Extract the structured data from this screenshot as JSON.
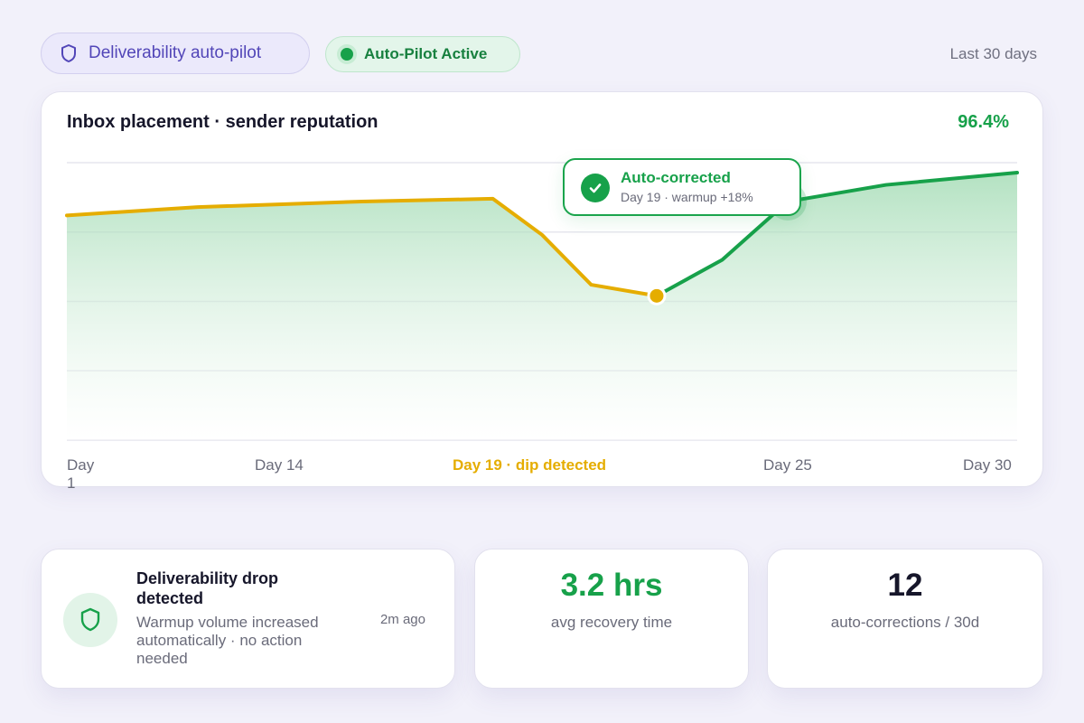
{
  "header": {
    "product_label": "Deliverability auto-pilot",
    "status_label": "Auto-Pilot Active",
    "range_label": "Last 30 days"
  },
  "chart": {
    "title": "Inbox placement · sender reputation",
    "current_value": "96.4%",
    "callout": {
      "title": "Auto-corrected",
      "subtitle": "Day 19 · warmup +18%"
    },
    "x_ticks": {
      "day1": "Day\n1",
      "day14": "Day 14",
      "dip": "Day 19 · dip detected",
      "day25": "Day 25",
      "day30": "Day 30"
    }
  },
  "chart_data": {
    "type": "line",
    "title": "Inbox placement · sender reputation",
    "ylim": [
      0,
      100
    ],
    "grid": true,
    "series": [
      {
        "name": "",
        "x": [
          1,
          5,
          10,
          14,
          15.5,
          17,
          19
        ],
        "y": [
          81,
          84,
          86,
          87,
          74,
          56,
          52
        ],
        "color": "#e5ad00"
      },
      {
        "name": "",
        "x": [
          19,
          21,
          23,
          26,
          30
        ],
        "y": [
          52,
          65,
          86,
          92,
          96.4
        ],
        "color": "#17a14a"
      }
    ],
    "markers": [
      {
        "label": "dip",
        "x": 19,
        "y": 52,
        "color": "#e5ad00"
      },
      {
        "label": "auto-corrected",
        "x": 23,
        "y": 86,
        "color": "#17a14a"
      }
    ]
  },
  "alert": {
    "title": "Deliverability drop detected",
    "body": "Warmup volume increased automatically · no action needed",
    "time": "2m ago"
  },
  "stats": [
    {
      "value": "3.2 hrs",
      "label": "avg recovery time"
    },
    {
      "value": "12",
      "label": "auto-corrections / 30d"
    }
  ],
  "colors": {
    "accent_green": "#17a14a",
    "warning_yellow": "#e5ad00",
    "brand_purple": "#5246b8"
  },
  "icons": {
    "product": "shield-icon",
    "callout": "check-circle-icon",
    "alert": "shield-icon"
  }
}
